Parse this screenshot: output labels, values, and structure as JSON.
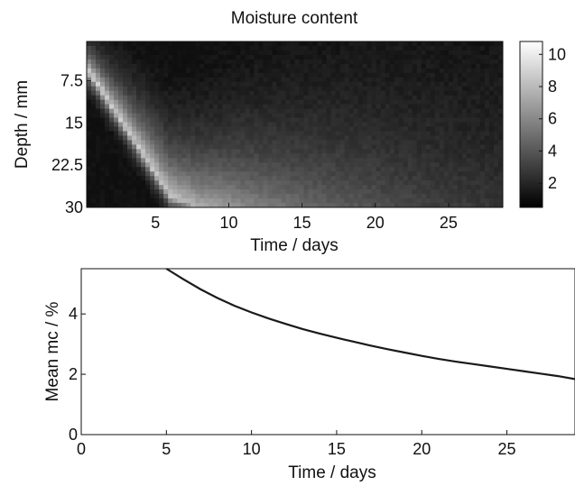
{
  "chart_data": [
    {
      "type": "heatmap",
      "title": "Moisture content",
      "xlabel": "Time / days",
      "ylabel": "Depth / mm",
      "x_ticks": [
        "5",
        "10",
        "15",
        "20",
        "25"
      ],
      "y_ticks": [
        "7.5",
        "15",
        "22.5",
        "30"
      ],
      "x_tick_values": [
        5,
        10,
        15,
        20,
        25
      ],
      "y_tick_values": [
        7.5,
        15,
        22.5,
        30
      ],
      "xlim": [
        0.3,
        28.7
      ],
      "ylim": [
        30,
        0.5
      ],
      "y_reversed": true,
      "colorbar": {
        "ticks": [
          "2",
          "4",
          "6",
          "8",
          "10"
        ],
        "tick_values": [
          2,
          4,
          6,
          8,
          10
        ],
        "range": [
          0.5,
          10.8
        ],
        "colormap": "gray"
      },
      "description_of_field": {
        "time_days": [
          0.5,
          2,
          4,
          6,
          8,
          10,
          12,
          15,
          18,
          21,
          24,
          28
        ],
        "depth_mm_of_peak_moisture": [
          6,
          12,
          20,
          28,
          30,
          30,
          30,
          30,
          30,
          30,
          30,
          30
        ],
        "peak_moisture_percent": [
          9.5,
          9,
          9,
          8.5,
          7.5,
          6.5,
          5.5,
          4.5,
          3.8,
          3.2,
          2.7,
          2.2
        ]
      }
    },
    {
      "type": "line",
      "title": "",
      "xlabel": "Time / days",
      "ylabel": "Mean mc / %",
      "x_ticks": [
        "0",
        "5",
        "10",
        "15",
        "20",
        "25"
      ],
      "y_ticks": [
        "0",
        "2",
        "4"
      ],
      "xlim": [
        0,
        29
      ],
      "ylim": [
        0,
        5.5
      ],
      "series": [
        {
          "x": [
            5.0,
            6,
            7,
            8,
            9,
            10,
            11,
            12,
            13,
            14,
            15,
            16,
            17,
            18,
            19,
            20,
            21,
            22,
            23,
            24,
            25,
            26,
            27,
            28,
            29
          ],
          "y": [
            5.5,
            5.15,
            4.82,
            4.53,
            4.27,
            4.05,
            3.85,
            3.67,
            3.5,
            3.35,
            3.21,
            3.08,
            2.95,
            2.83,
            2.72,
            2.61,
            2.51,
            2.42,
            2.34,
            2.26,
            2.18,
            2.1,
            2.02,
            1.94,
            1.84
          ]
        }
      ]
    }
  ]
}
